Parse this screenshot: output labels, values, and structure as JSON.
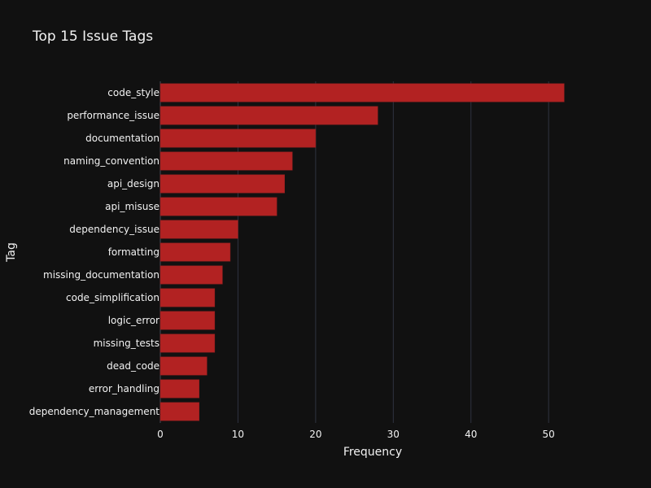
{
  "chart_data": {
    "type": "bar",
    "orientation": "horizontal",
    "title": "Top 15 Issue Tags",
    "xlabel": "Frequency",
    "ylabel": "Tag",
    "xlim": [
      0,
      57
    ],
    "x_ticks": [
      0,
      10,
      20,
      30,
      40,
      50
    ],
    "grid": true,
    "bar_color": "#b22222",
    "background_color": "#111111",
    "categories": [
      "code_style",
      "performance_issue",
      "documentation",
      "naming_convention",
      "api_design",
      "api_misuse",
      "dependency_issue",
      "formatting",
      "missing_documentation",
      "code_simplification",
      "logic_error",
      "missing_tests",
      "dead_code",
      "error_handling",
      "dependency_management"
    ],
    "values": [
      52,
      28,
      20,
      17,
      16,
      15,
      10,
      9,
      8,
      7,
      7,
      7,
      6,
      5,
      5
    ]
  }
}
